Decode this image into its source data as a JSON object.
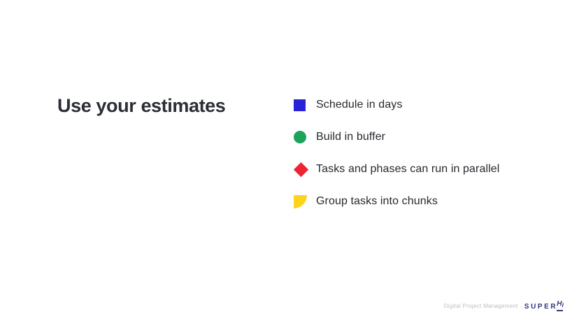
{
  "slide": {
    "title": "Use your estimates",
    "bullets": [
      {
        "text": "Schedule in days",
        "shape": "square",
        "color": "#2823D6"
      },
      {
        "text": "Build in buffer",
        "shape": "circle",
        "color": "#1EA35B"
      },
      {
        "text": "Tasks and phases can run in parallel",
        "shape": "diamond",
        "color": "#EE2433"
      },
      {
        "text": "Group tasks into chunks",
        "shape": "quarter",
        "color": "#FFD31C"
      }
    ]
  },
  "footer": {
    "caption": "Digital Project Management",
    "logo_super": "SUPER",
    "logo_h": "H",
    "logo_i": "i"
  },
  "colors": {
    "background": "#FFFFFF",
    "title_text": "#2B2E34",
    "body_text": "#26292E",
    "caption_text": "#BDBDBD",
    "logo": "#34347E",
    "bullet_blue": "#2823D6",
    "bullet_green": "#1EA35B",
    "bullet_red": "#EE2433",
    "bullet_yellow": "#FFD31C"
  }
}
